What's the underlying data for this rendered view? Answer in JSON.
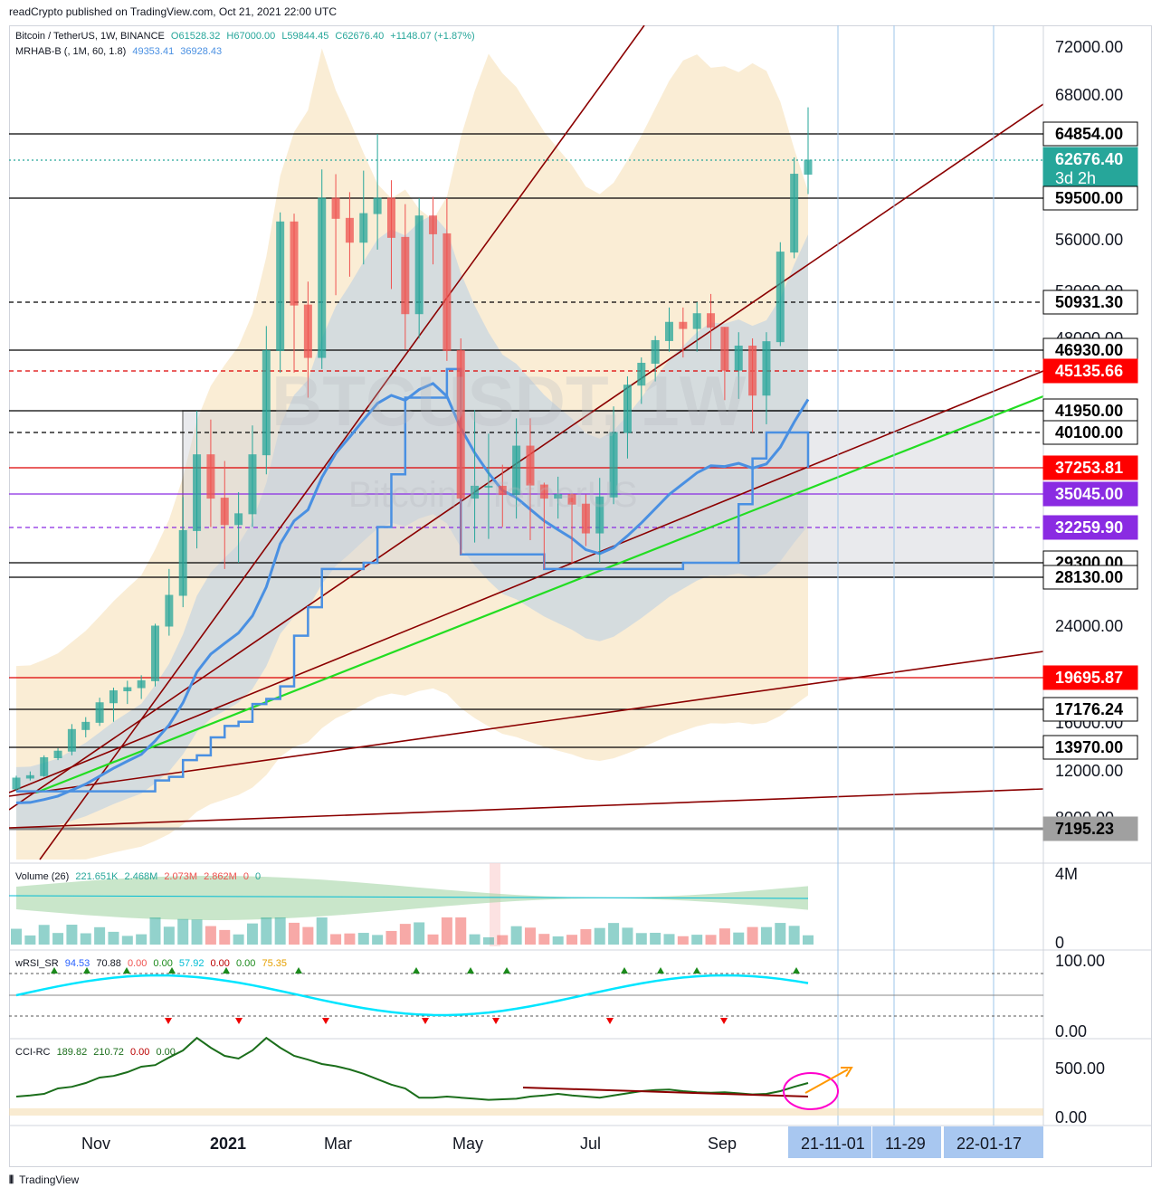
{
  "header": {
    "publisher": "readCrypto published on TradingView.com, Oct 21, 2021 22:00 UTC"
  },
  "legend": {
    "symbol": "Bitcoin / TetherUS, 1W, BINANCE",
    "open": "O61528.32",
    "high": "H67000.00",
    "low": "L59844.45",
    "close": "C62676.40",
    "change": "+1148.07 (+1.87%)",
    "indicator": "MRHAB-B (, 1M, 60, 1.8)",
    "ind_v1": "49353.41",
    "ind_v2": "36928.43"
  },
  "watermark": {
    "ticker": "BTCUSDT, 1W",
    "name": "Bitcoin / TetherUS"
  },
  "volume_legend": {
    "label": "Volume (26)",
    "v1": "221.651K",
    "v2": "2.468M",
    "v3": "2.073M",
    "v4": "2.862M",
    "v5": "0",
    "v6": "0"
  },
  "wrsi_legend": {
    "label": "wRSI_SR",
    "v1": "94.53",
    "v2": "70.88",
    "v3": "0.00",
    "v4": "0.00",
    "v5": "57.92",
    "v6": "0.00",
    "v7": "0.00",
    "v8": "75.35"
  },
  "cci_legend": {
    "label": "CCI-RC",
    "v1": "189.82",
    "v2": "210.72",
    "v3": "0.00",
    "v4": "0.00"
  },
  "footer": {
    "brand": "TradingView"
  },
  "colors": {
    "up": "#26a69a",
    "down": "#ef5350",
    "green_line": "#22dd22",
    "trend": "#8b0000",
    "band": "#f5deb3",
    "blue": "#4a90e2"
  },
  "chart_data": {
    "type": "candlestick",
    "symbol": "BTCUSDT",
    "interval": "1W",
    "y_axis_ticks": [
      "72000.00",
      "68000.00",
      "56000.00",
      "52000.00",
      "48000.00",
      "24000.00",
      "16000.00",
      "12000.00",
      "8000.00"
    ],
    "volume_ticks": [
      "4M",
      "0"
    ],
    "wrsi_ticks": [
      "100.00",
      "0.00"
    ],
    "cci_ticks": [
      "500.00",
      "0.00"
    ],
    "x_axis_labels": [
      "Nov",
      "2021",
      "Mar",
      "May",
      "Jul",
      "Sep"
    ],
    "future_dates": [
      "21-11-01",
      "11-29",
      "22-01-17"
    ],
    "price_levels": [
      {
        "label": "64854.00",
        "style": "black"
      },
      {
        "label": "62676.40",
        "sub": "3d 2h",
        "style": "teal"
      },
      {
        "label": "59500.00",
        "style": "black"
      },
      {
        "label": "50931.30",
        "style": "black"
      },
      {
        "label": "46930.00",
        "style": "black"
      },
      {
        "label": "45135.66",
        "style": "red"
      },
      {
        "label": "41950.00",
        "style": "black"
      },
      {
        "label": "40100.00",
        "style": "black"
      },
      {
        "label": "37253.81",
        "style": "red"
      },
      {
        "label": "35045.00",
        "style": "purple"
      },
      {
        "label": "32259.90",
        "style": "purple"
      },
      {
        "label": "29300.00",
        "style": "black"
      },
      {
        "label": "28130.00",
        "style": "black"
      },
      {
        "label": "19695.87",
        "style": "red"
      },
      {
        "label": "17176.24",
        "style": "black"
      },
      {
        "label": "13970.00",
        "style": "black"
      },
      {
        "label": "7195.23",
        "style": "gray"
      }
    ],
    "candles": [
      [
        10500,
        11600,
        10300,
        11400
      ],
      [
        11400,
        11950,
        11200,
        11600
      ],
      [
        11600,
        13300,
        11500,
        13100
      ],
      [
        13100,
        13900,
        12900,
        13650
      ],
      [
        13650,
        15900,
        13300,
        15450
      ],
      [
        15450,
        16500,
        14800,
        16050
      ],
      [
        16050,
        18100,
        15750,
        17700
      ],
      [
        17700,
        18900,
        16100,
        18650
      ],
      [
        18650,
        19450,
        17600,
        18900
      ],
      [
        18900,
        19900,
        18000,
        19450
      ],
      [
        19450,
        24200,
        19000,
        24000
      ],
      [
        24000,
        28800,
        23200,
        26600
      ],
      [
        26600,
        34800,
        25600,
        32000
      ],
      [
        32000,
        41950,
        30500,
        38300
      ],
      [
        38300,
        41200,
        32300,
        34700
      ],
      [
        34700,
        37800,
        28800,
        32500
      ],
      [
        32500,
        35200,
        29300,
        33400
      ],
      [
        33400,
        40700,
        32300,
        38300
      ],
      [
        38300,
        49000,
        36700,
        46900
      ],
      [
        46900,
        58300,
        45000,
        57500
      ],
      [
        57500,
        58200,
        45000,
        50700
      ],
      [
        50700,
        52600,
        43000,
        46300
      ],
      [
        46300,
        61900,
        45300,
        59500
      ],
      [
        59500,
        61500,
        51500,
        57800
      ],
      [
        57800,
        60000,
        53000,
        55800
      ],
      [
        55800,
        61800,
        54000,
        58200
      ],
      [
        58200,
        64854,
        55200,
        59500
      ],
      [
        59500,
        61000,
        52000,
        56200
      ],
      [
        56200,
        59000,
        47000,
        50000
      ],
      [
        50000,
        59500,
        48000,
        58000
      ],
      [
        58000,
        59600,
        54000,
        56500
      ],
      [
        56500,
        59500,
        46000,
        46900
      ],
      [
        46900,
        48000,
        30000,
        34700
      ],
      [
        34700,
        42000,
        31000,
        35700
      ],
      [
        35700,
        40000,
        31300,
        35700
      ],
      [
        35700,
        37500,
        32300,
        35000
      ],
      [
        35000,
        41300,
        33000,
        39000
      ],
      [
        39000,
        41300,
        31200,
        35800
      ],
      [
        35800,
        36000,
        28800,
        34700
      ],
      [
        34700,
        36500,
        33000,
        35000
      ],
      [
        35000,
        35100,
        29300,
        34200
      ],
      [
        34200,
        35000,
        30700,
        31800
      ],
      [
        31800,
        36400,
        29300,
        34800
      ],
      [
        34800,
        42300,
        34200,
        40100
      ],
      [
        40100,
        44700,
        38000,
        44000
      ],
      [
        44000,
        46300,
        42500,
        45800
      ],
      [
        45800,
        48200,
        44300,
        47800
      ],
      [
        47800,
        50500,
        46800,
        49300
      ],
      [
        49300,
        50500,
        46300,
        48800
      ],
      [
        48800,
        50931,
        46800,
        50000
      ],
      [
        50000,
        51600,
        47000,
        48900
      ],
      [
        48900,
        48900,
        42800,
        45200
      ],
      [
        45200,
        48500,
        42900,
        47300
      ],
      [
        47300,
        48000,
        40100,
        43200
      ],
      [
        43200,
        48500,
        40800,
        47700
      ],
      [
        47700,
        55800,
        47300,
        55000
      ],
      [
        55000,
        62900,
        54500,
        61500
      ],
      [
        61500,
        67000,
        59844,
        62676
      ]
    ]
  }
}
